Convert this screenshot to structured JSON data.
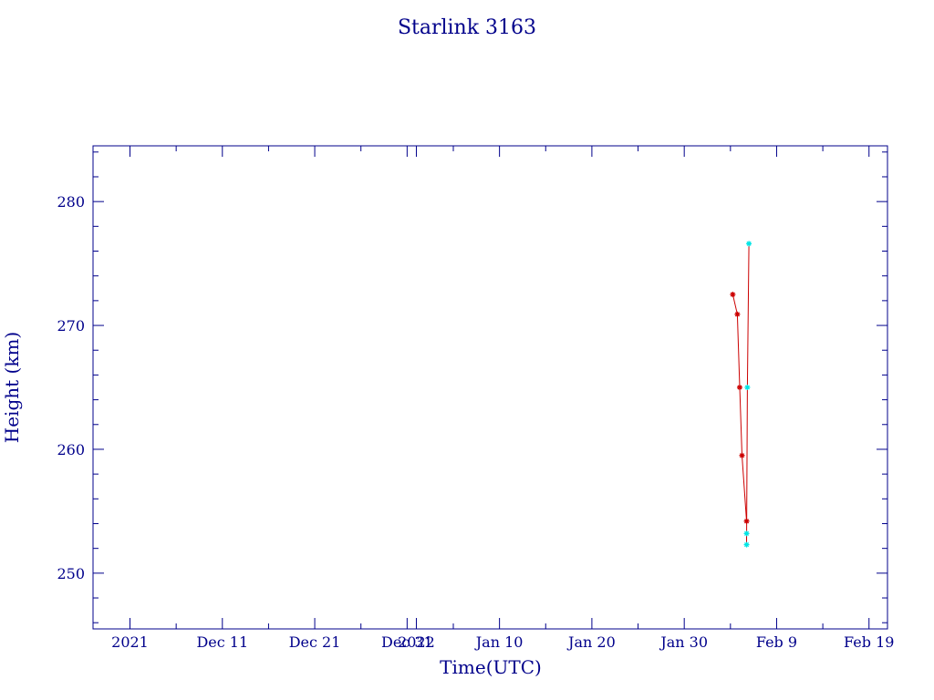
{
  "chart_data": {
    "type": "line",
    "title": "Starlink 3163",
    "xlabel": "Time(UTC)",
    "ylabel": "Height (km)",
    "x_axis": "date",
    "xlim": [
      "2021-11-27",
      "2022-02-21"
    ],
    "ylim": [
      245.5,
      284.5
    ],
    "grid": false,
    "x_ticks": [
      {
        "value": "2021-12-01",
        "label": "2021"
      },
      {
        "value": "2021-12-11",
        "label": "Dec 11"
      },
      {
        "value": "2021-12-21",
        "label": "Dec 21"
      },
      {
        "value": "2021-12-31",
        "label": "Dec 31"
      },
      {
        "value": "2022-01-01",
        "label": "2022"
      },
      {
        "value": "2022-01-10",
        "label": "Jan 10"
      },
      {
        "value": "2022-01-20",
        "label": "Jan 20"
      },
      {
        "value": "2022-01-30",
        "label": "Jan 30"
      },
      {
        "value": "2022-02-09",
        "label": "Feb  9"
      },
      {
        "value": "2022-02-19",
        "label": "Feb 19"
      }
    ],
    "y_ticks": [
      250,
      260,
      270,
      280
    ],
    "series": [
      {
        "color": "#cc0000",
        "marker_color": "#cc0000",
        "points": [
          {
            "x": "2022-02-04T06:00",
            "y": 272.5
          },
          {
            "x": "2022-02-04T18:00",
            "y": 270.9
          },
          {
            "x": "2022-02-05T00:00",
            "y": 265.0
          },
          {
            "x": "2022-02-05T06:00",
            "y": 259.5
          },
          {
            "x": "2022-02-05T18:00",
            "y": 254.2
          }
        ]
      },
      {
        "color": "#cc0000",
        "marker_color": "#00e5e5",
        "points": [
          {
            "x": "2022-02-05T18:00",
            "y": 253.2
          },
          {
            "x": "2022-02-05T18:00",
            "y": 252.3
          },
          {
            "x": "2022-02-05T20:00",
            "y": 265.0
          },
          {
            "x": "2022-02-06T00:00",
            "y": 276.6
          }
        ]
      }
    ]
  }
}
